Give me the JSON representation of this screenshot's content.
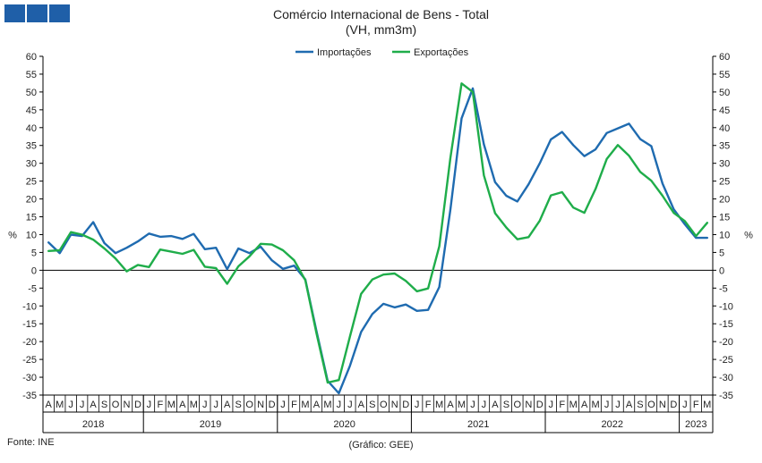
{
  "header": {
    "title": "Comércio Internacional de Bens - Total",
    "subtitle": "(VH, mm3m)"
  },
  "footer": {
    "source": "Fonte: INE",
    "credit": "(Gráfico: GEE)"
  },
  "colors": {
    "importacoes": "#1f6bb0",
    "exportacoes": "#1fad4a",
    "logo": "#1f5fa8",
    "axis": "#000000"
  },
  "chart_data": {
    "type": "line",
    "title": "Comércio Internacional de Bens - Total",
    "subtitle": "(VH, mm3m)",
    "ylabel_left": "%",
    "ylabel_right": "%",
    "ylim": [
      -35,
      60
    ],
    "ytick_step": 5,
    "legend_position": "top-center",
    "grid": false,
    "month_letters": [
      "A",
      "M",
      "J",
      "J",
      "A",
      "S",
      "O",
      "N",
      "D",
      "J",
      "F",
      "M",
      "A",
      "M",
      "J",
      "J",
      "A",
      "S",
      "O",
      "N",
      "D",
      "J",
      "F",
      "M",
      "A",
      "M",
      "J",
      "J",
      "A",
      "S",
      "O",
      "N",
      "D",
      "J",
      "F",
      "M",
      "A",
      "M",
      "J",
      "J",
      "A",
      "S",
      "O",
      "N",
      "D",
      "J",
      "F",
      "M",
      "A",
      "M",
      "J",
      "J",
      "A",
      "S",
      "O",
      "N",
      "D",
      "J",
      "F",
      "M"
    ],
    "years": [
      {
        "label": "2018",
        "start": 0,
        "end": 8
      },
      {
        "label": "2019",
        "start": 9,
        "end": 20
      },
      {
        "label": "2020",
        "start": 21,
        "end": 32
      },
      {
        "label": "2021",
        "start": 33,
        "end": 44
      },
      {
        "label": "2022",
        "start": 45,
        "end": 56
      },
      {
        "label": "2023",
        "start": 57,
        "end": 59
      }
    ],
    "series": [
      {
        "name": "Importações",
        "color": "#1f6bb0",
        "values": [
          7.8,
          4.8,
          10.0,
          9.6,
          13.5,
          7.6,
          4.8,
          6.3,
          8.1,
          10.3,
          9.4,
          9.6,
          8.8,
          10.2,
          5.9,
          6.3,
          0.3,
          6.1,
          4.8,
          6.6,
          2.8,
          0.4,
          1.3,
          -2.6,
          -17.0,
          -31.0,
          -34.5,
          -26.8,
          -17.3,
          -12.3,
          -9.4,
          -10.4,
          -9.6,
          -11.4,
          -11.1,
          -4.7,
          17.0,
          42.6,
          51.0,
          35.3,
          24.7,
          20.9,
          19.3,
          24.1,
          30.0,
          36.7,
          38.8,
          35.1,
          32.0,
          33.9,
          38.5,
          39.8,
          41.1,
          36.8,
          34.8,
          24.3,
          17.1,
          12.9,
          9.1,
          9.1
        ]
      },
      {
        "name": "Exportações",
        "color": "#1fad4a",
        "values": [
          5.4,
          5.6,
          10.7,
          10.0,
          8.6,
          6.1,
          3.3,
          -0.3,
          1.5,
          0.9,
          5.8,
          5.2,
          4.6,
          5.7,
          1.0,
          0.6,
          -3.8,
          1.1,
          3.9,
          7.4,
          7.2,
          5.6,
          2.8,
          -2.8,
          -17.6,
          -31.5,
          -30.8,
          -18.6,
          -6.6,
          -2.6,
          -1.2,
          -0.9,
          -3.0,
          -5.9,
          -5.1,
          6.7,
          31.5,
          52.4,
          50.0,
          26.6,
          16.0,
          12.0,
          8.7,
          9.3,
          13.9,
          21.0,
          21.9,
          17.6,
          16.1,
          22.8,
          31.2,
          35.1,
          32.1,
          27.6,
          25.1,
          20.9,
          16.1,
          13.8,
          9.6,
          13.3
        ]
      }
    ]
  }
}
